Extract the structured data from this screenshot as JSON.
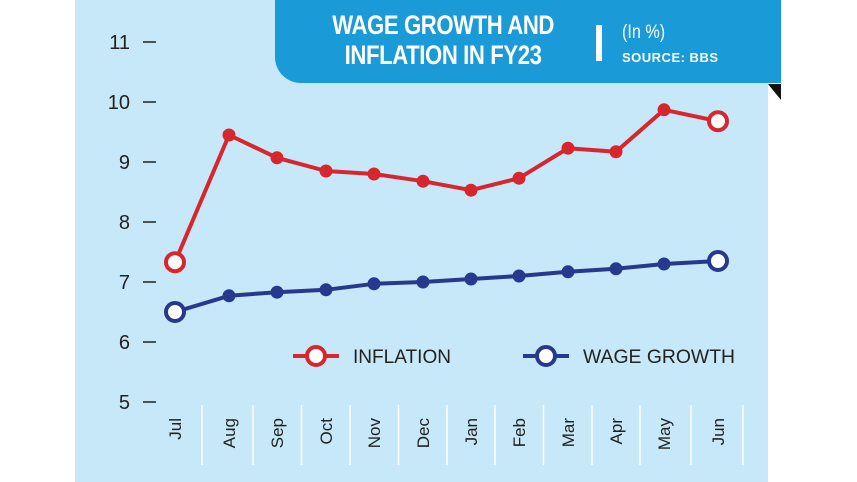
{
  "header": {
    "title_line1": "WAGE GROWTH AND",
    "title_line2": "INFLATION IN FY23",
    "unit": "(In %)",
    "source": "SOURCE: BBS"
  },
  "colors": {
    "background": "#c6e8f8",
    "header": "#1a9ad6",
    "inflation": "#d7262e",
    "wage_growth": "#27388f"
  },
  "chart_data": {
    "type": "line",
    "title": "WAGE GROWTH AND INFLATION IN FY23",
    "subtitle": "(In %)",
    "source": "SOURCE: BBS",
    "categories": [
      "Jul",
      "Aug",
      "Sep",
      "Oct",
      "Nov",
      "Dec",
      "Jan",
      "Feb",
      "Mar",
      "Apr",
      "May",
      "Jun"
    ],
    "ylim": [
      5,
      11
    ],
    "yticks": [
      5,
      6,
      7,
      8,
      9,
      10,
      11
    ],
    "grid": false,
    "legend": "bottom",
    "series": [
      {
        "name": "INFLATION",
        "color": "#d7262e",
        "values": [
          7.33,
          9.45,
          9.07,
          8.85,
          8.8,
          8.68,
          8.53,
          8.73,
          9.23,
          9.17,
          9.87,
          9.68
        ]
      },
      {
        "name": "WAGE GROWTH",
        "color": "#27388f",
        "values": [
          6.5,
          6.77,
          6.83,
          6.87,
          6.97,
          7.0,
          7.05,
          7.1,
          7.17,
          7.22,
          7.3,
          7.35
        ]
      }
    ]
  }
}
